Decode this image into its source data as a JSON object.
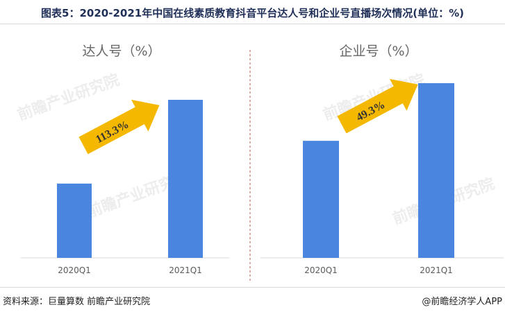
{
  "title": "图表5：2020-2021年中国在线素质教育抖音平台达人号和企业号直播场次情况(单位：%)",
  "footer": {
    "source": "资料来源：巨量算数 前瞻产业研究院",
    "credit": "@前瞻经济学人APP"
  },
  "watermark": "前瞻产业研究院",
  "colors": {
    "bar": "#4a86e0",
    "arrow": "#f5b800",
    "divider": "#c0504d",
    "title": "#1f2f57"
  },
  "chart_data": [
    {
      "type": "bar",
      "title": "达人号（%）",
      "categories": [
        "2020Q1",
        "2021Q1"
      ],
      "values": [
        47,
        100
      ],
      "annotation": "113.3%",
      "arrow": "up-right"
    },
    {
      "type": "bar",
      "title": "企业号（%）",
      "categories": [
        "2020Q1",
        "2021Q1"
      ],
      "values": [
        67,
        100
      ],
      "annotation": "49.3%",
      "arrow": "up-right"
    }
  ]
}
